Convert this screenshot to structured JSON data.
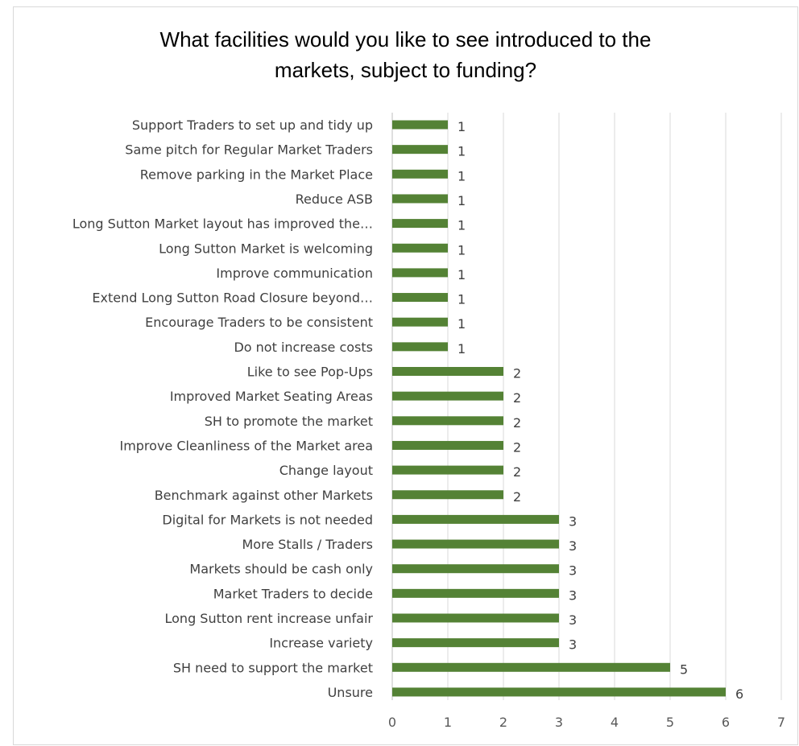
{
  "chart_data": {
    "type": "bar",
    "orientation": "horizontal",
    "title": "What facilities would you like to see introduced to the\nmarkets, subject to funding?",
    "categories": [
      "Support Traders to set up and tidy up",
      "Same pitch for Regular Market Traders",
      "Remove parking in the Market Place",
      "Reduce ASB",
      "Long Sutton Market layout has improved the…",
      "Long Sutton Market is welcoming",
      "Improve communication",
      "Extend Long Sutton Road Closure beyond…",
      "Encourage Traders to be consistent",
      "Do not increase costs",
      "Like to see Pop-Ups",
      "Improved Market Seating Areas",
      "SH to promote the market",
      "Improve Cleanliness of the Market area",
      "Change layout",
      "Benchmark against other Markets",
      "Digital for Markets is not needed",
      "More Stalls / Traders",
      "Markets should be cash only",
      "Market Traders to decide",
      "Long Sutton rent increase unfair",
      "Increase variety",
      "SH need to support the market",
      "Unsure"
    ],
    "values": [
      1,
      1,
      1,
      1,
      1,
      1,
      1,
      1,
      1,
      1,
      2,
      2,
      2,
      2,
      2,
      2,
      3,
      3,
      3,
      3,
      3,
      3,
      5,
      6
    ],
    "xlim": [
      0,
      7
    ],
    "xticks": [
      0,
      1,
      2,
      3,
      4,
      5,
      6,
      7
    ],
    "data_labels": true,
    "gridlines": "vertical",
    "legend": "none",
    "bar_color": "#548235",
    "xlabel": "",
    "ylabel": ""
  }
}
